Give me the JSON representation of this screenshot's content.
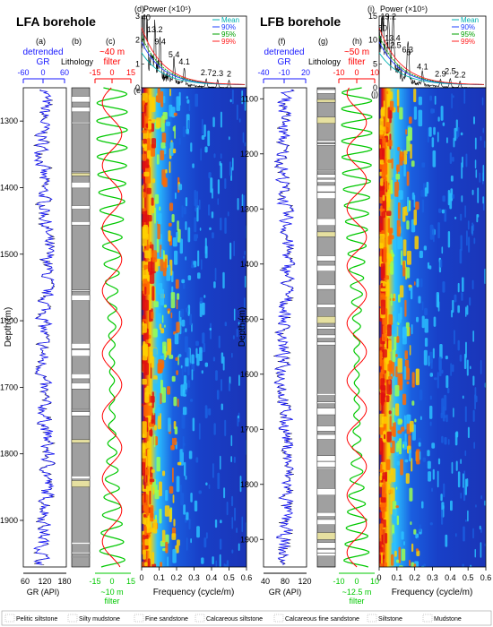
{
  "colors": {
    "gr_line": "#1a1aff",
    "gr_black": "#000000",
    "filter_green": "#00c800",
    "filter_red": "#ff0000",
    "lith_gray": "#a0a0a0",
    "lith_sand": "#e6e0a0",
    "spec_blue": "#1f3fbf",
    "mean": "#00b0b0",
    "c90": "#2040ff",
    "c95": "#00a000",
    "c99": "#ff2020"
  },
  "panels": {
    "a": "(a)",
    "b": "(b)",
    "c": "(c)",
    "d": "(d)",
    "e": "(e)",
    "f": "(f)",
    "g": "(g)",
    "h": "(h)",
    "i": "(i)",
    "j": "(j)"
  },
  "lfa": {
    "title": "LFA borehole",
    "gr_title_1": "detrended",
    "gr_title_2": "GR",
    "gr_ticks": [
      "-60",
      "0",
      "60"
    ],
    "lith_title": "Lithology",
    "filter_title_1": "~40 m",
    "filter_title_2": "filter",
    "filter_ticks": [
      "-15",
      "0",
      "15"
    ],
    "bottom_gr_ticks": [
      "60",
      "120",
      "180"
    ],
    "bottom_gr_label": "GR (API)",
    "bottom_filter_ticks": [
      "-15",
      "0",
      "15"
    ],
    "bottom_filter_label": "~10 m",
    "bottom_filter_label2": "filter",
    "depth_label": "Depth (m)",
    "depth_ticks": [
      "1300",
      "1400",
      "1500",
      "1600",
      "1700",
      "1800",
      "1900"
    ],
    "depth_range": [
      1250,
      1970
    ]
  },
  "lfb": {
    "title": "LFB borehole",
    "gr_title_1": "detrended",
    "gr_title_2": "GR",
    "gr_ticks": [
      "-40",
      "-10",
      "20"
    ],
    "lith_title": "Lithology",
    "filter_title_1": "~50 m",
    "filter_title_2": "filter",
    "filter_ticks": [
      "-10",
      "0",
      "10"
    ],
    "bottom_gr_ticks": [
      "40",
      "80",
      "120"
    ],
    "bottom_gr_label": "GR (API)",
    "bottom_filter_ticks": [
      "-10",
      "0",
      "10"
    ],
    "bottom_filter_label": "~12.5 m",
    "bottom_filter_label2": "filter",
    "depth_label": "Depth (m)",
    "depth_ticks": [
      "1100",
      "1200",
      "1300",
      "1400",
      "1500",
      "1600",
      "1700",
      "1800",
      "1900"
    ],
    "depth_range": [
      1080,
      1950
    ]
  },
  "chart_data": [
    {
      "type": "line",
      "panel": "(d)",
      "title": "Power (×10⁵)",
      "xlabel": "Frequency (cycle/m)",
      "xlim": [
        0,
        0.6
      ],
      "ylim": [
        0,
        3
      ],
      "x_ticks": [
        "0",
        "0.1",
        "0.2",
        "0.3",
        "0.4",
        "0.5",
        "0.6"
      ],
      "y_ticks": [
        "0",
        "1",
        "2",
        "3"
      ],
      "legend": [
        "Mean",
        "90%",
        "95%",
        "99%"
      ],
      "legend_position": "top-right",
      "peaks": [
        {
          "x": 0.025,
          "y": 2.75,
          "label": "40"
        },
        {
          "x": 0.076,
          "y": 2.25,
          "label": "13.2"
        },
        {
          "x": 0.106,
          "y": 1.75,
          "label": "9.4"
        },
        {
          "x": 0.185,
          "y": 1.2,
          "label": "5.4"
        },
        {
          "x": 0.244,
          "y": 0.9,
          "label": "4.1"
        },
        {
          "x": 0.37,
          "y": 0.45,
          "label": "2.7"
        },
        {
          "x": 0.435,
          "y": 0.42,
          "label": "2.3"
        },
        {
          "x": 0.5,
          "y": 0.4,
          "label": "2"
        }
      ]
    },
    {
      "type": "heatmap",
      "panel": "(e)",
      "xlabel": "Frequency (cycle/m)",
      "xlim": [
        0,
        0.6
      ],
      "x_ticks": [
        "0",
        "0.1",
        "0.2",
        "0.3",
        "0.4",
        "0.5",
        "0.6"
      ]
    },
    {
      "type": "line",
      "panel": "(i)",
      "title": "Power (×10⁵)",
      "xlabel": "Frequency (cycle/m)",
      "xlim": [
        0,
        0.6
      ],
      "ylim": [
        0,
        15
      ],
      "x_ticks": [
        "0",
        "0.1",
        "0.2",
        "0.3",
        "0.4",
        "0.5",
        "0.6"
      ],
      "y_ticks": [
        "0",
        "5",
        "10",
        "15"
      ],
      "legend": [
        "Mean",
        "90%",
        "95%",
        "99%"
      ],
      "legend_position": "top-right",
      "peaks": [
        {
          "x": 0.052,
          "y": 14.0,
          "label": "19.2"
        },
        {
          "x": 0.02,
          "y": 11.5,
          "label": "50"
        },
        {
          "x": 0.075,
          "y": 9.5,
          "label": "13.4"
        },
        {
          "x": 0.08,
          "y": 8.0,
          "label": "12.5"
        },
        {
          "x": 0.16,
          "y": 7.0,
          "label": "6.3"
        },
        {
          "x": 0.165,
          "y": 6.5,
          "label": "6"
        },
        {
          "x": 0.244,
          "y": 3.5,
          "label": "4.1"
        },
        {
          "x": 0.345,
          "y": 2.0,
          "label": "2.9"
        },
        {
          "x": 0.4,
          "y": 2.5,
          "label": "2.5"
        },
        {
          "x": 0.455,
          "y": 1.8,
          "label": "2.2"
        }
      ]
    },
    {
      "type": "heatmap",
      "panel": "(j)",
      "xlabel": "Frequency (cycle/m)",
      "xlim": [
        0,
        0.6
      ],
      "x_ticks": [
        "0",
        "0.1",
        "0.2",
        "0.3",
        "0.4",
        "0.5",
        "0.6"
      ]
    }
  ],
  "legend_items": [
    {
      "label": "Pelitic siltstone",
      "swatch": "#ffffff"
    },
    {
      "label": "Silty mudstone",
      "swatch": "#ffffff"
    },
    {
      "label": "Fine sandstone",
      "swatch": "#ffffff"
    },
    {
      "label": "Calcareous siltstone",
      "swatch": "#ffffff"
    },
    {
      "label": "Calcareous fine sandstone",
      "swatch": "#ffffff"
    },
    {
      "label": "Siltstone",
      "swatch": "#ffffff"
    },
    {
      "label": "Mudstone",
      "swatch": "#ffffff"
    }
  ]
}
